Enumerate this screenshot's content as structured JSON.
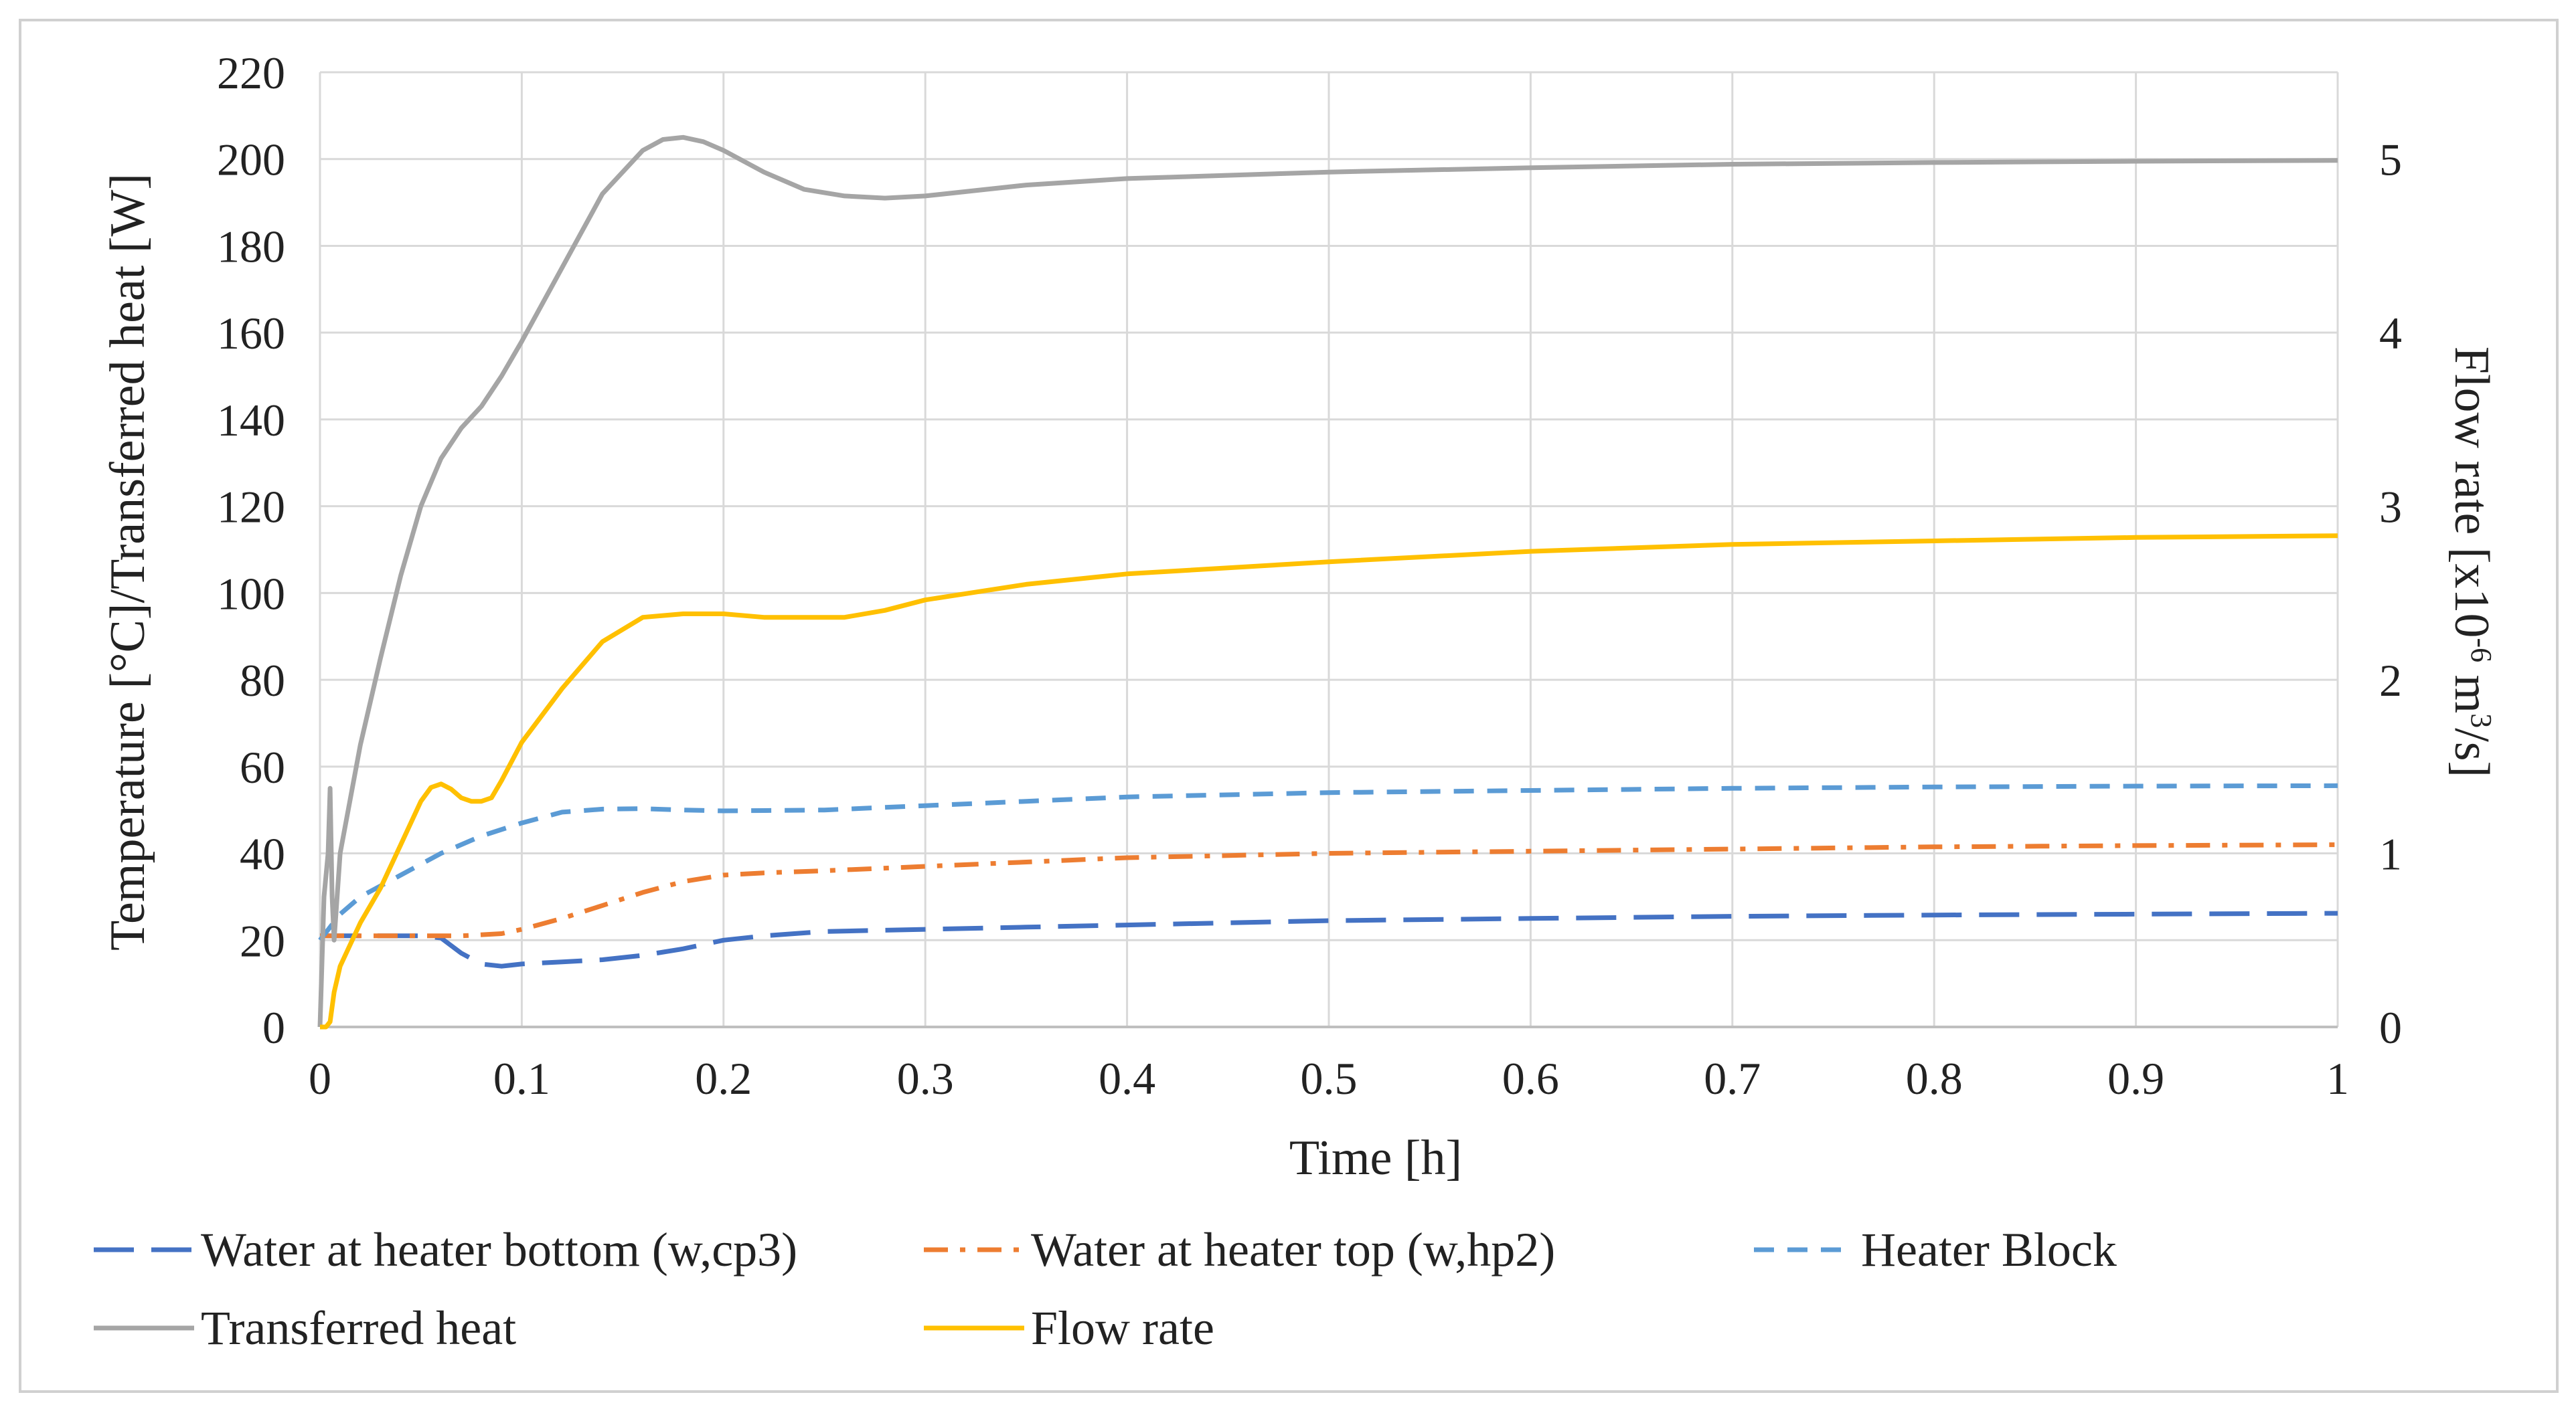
{
  "chart_data": {
    "type": "line",
    "xlabel": "Time [h]",
    "ylabel": "Temperature [°C]/Transferred heat [W]",
    "y2label": {
      "prefix": "Flow rate [x10",
      "exp1": "-6",
      "mid": " m",
      "exp2": "3",
      "suffix": "/s]"
    },
    "xlim": [
      0,
      1
    ],
    "ylim": [
      0,
      220
    ],
    "y2lim": [
      0,
      5.5
    ],
    "x_ticks": [
      0,
      0.1,
      0.2,
      0.3,
      0.4,
      0.5,
      0.6,
      0.7,
      0.8,
      0.9,
      1
    ],
    "x_tick_labels": [
      "0",
      "0.1",
      "0.2",
      "0.3",
      "0.4",
      "0.5",
      "0.6",
      "0.7",
      "0.8",
      "0.9",
      "1"
    ],
    "y_ticks": [
      0,
      20,
      40,
      60,
      80,
      100,
      120,
      140,
      160,
      180,
      200,
      220
    ],
    "y_tick_labels": [
      "0",
      "20",
      "40",
      "60",
      "80",
      "100",
      "120",
      "140",
      "160",
      "180",
      "200",
      "220"
    ],
    "y2_ticks": [
      0,
      1,
      2,
      3,
      4,
      5
    ],
    "y2_tick_labels": [
      "0",
      "1",
      "2",
      "3",
      "4",
      "5"
    ],
    "grid": true,
    "legend_position": "bottom",
    "series": [
      {
        "name": "Water at heater bottom (w,cp3)",
        "axis": "left",
        "color": "#4472c4",
        "dash": "long-dash",
        "x": [
          0,
          0.01,
          0.03,
          0.05,
          0.06,
          0.07,
          0.08,
          0.09,
          0.1,
          0.12,
          0.14,
          0.16,
          0.18,
          0.2,
          0.22,
          0.25,
          0.3,
          0.35,
          0.4,
          0.5,
          0.6,
          0.7,
          0.8,
          0.9,
          1.0
        ],
        "values": [
          21,
          21,
          21,
          21,
          20.5,
          17,
          14.5,
          14,
          14.5,
          15,
          15.5,
          16.5,
          18,
          20,
          21,
          22,
          22.5,
          23,
          23.5,
          24.5,
          25,
          25.5,
          25.8,
          26,
          26.2
        ]
      },
      {
        "name": "Water at heater top (w,hp2)",
        "axis": "left",
        "color": "#ed7d31",
        "dash": "dash-dot",
        "x": [
          0,
          0.02,
          0.05,
          0.07,
          0.09,
          0.1,
          0.12,
          0.14,
          0.16,
          0.18,
          0.2,
          0.22,
          0.25,
          0.3,
          0.35,
          0.4,
          0.5,
          0.6,
          0.7,
          0.8,
          0.9,
          1.0
        ],
        "values": [
          21,
          21,
          21,
          21,
          21.5,
          22.5,
          25,
          28,
          31,
          33.5,
          35,
          35.5,
          36,
          37,
          38,
          39,
          40,
          40.5,
          41,
          41.5,
          41.8,
          42
        ]
      },
      {
        "name": "Heater Block",
        "axis": "left",
        "color": "#5b9bd5",
        "dash": "short-dash",
        "x": [
          0,
          0.01,
          0.02,
          0.04,
          0.06,
          0.08,
          0.1,
          0.12,
          0.14,
          0.16,
          0.18,
          0.2,
          0.25,
          0.3,
          0.35,
          0.4,
          0.5,
          0.6,
          0.7,
          0.8,
          0.9,
          1.0
        ],
        "values": [
          20,
          26,
          30,
          35,
          40,
          44,
          47,
          49.5,
          50.2,
          50.3,
          50,
          49.8,
          50,
          51,
          52,
          53,
          54,
          54.5,
          55,
          55.3,
          55.5,
          55.6
        ]
      },
      {
        "name": "Transferred heat",
        "axis": "left",
        "color": "#a5a5a5",
        "dash": "solid",
        "x": [
          0,
          0.002,
          0.004,
          0.005,
          0.006,
          0.007,
          0.01,
          0.02,
          0.03,
          0.04,
          0.05,
          0.06,
          0.07,
          0.08,
          0.09,
          0.1,
          0.12,
          0.14,
          0.16,
          0.17,
          0.18,
          0.19,
          0.2,
          0.22,
          0.24,
          0.26,
          0.28,
          0.3,
          0.35,
          0.4,
          0.5,
          0.6,
          0.7,
          0.8,
          0.9,
          1.0
        ],
        "values": [
          0,
          30,
          40,
          55,
          30,
          20,
          40,
          65,
          85,
          104,
          120,
          131,
          138,
          143,
          150,
          158,
          175,
          192,
          202,
          204.5,
          205,
          204,
          202,
          197,
          193,
          191.5,
          191,
          191.5,
          194,
          195.5,
          197,
          198,
          198.8,
          199.2,
          199.5,
          199.7
        ]
      },
      {
        "name": "Flow rate",
        "axis": "right",
        "color": "#ffc000",
        "dash": "solid",
        "x": [
          0,
          0.003,
          0.005,
          0.007,
          0.01,
          0.02,
          0.03,
          0.04,
          0.05,
          0.055,
          0.06,
          0.065,
          0.07,
          0.075,
          0.08,
          0.085,
          0.09,
          0.1,
          0.12,
          0.14,
          0.16,
          0.18,
          0.2,
          0.22,
          0.25,
          0.26,
          0.28,
          0.3,
          0.35,
          0.4,
          0.5,
          0.6,
          0.7,
          0.8,
          0.9,
          1.0
        ],
        "values": [
          0,
          0,
          0.03,
          0.2,
          0.35,
          0.6,
          0.8,
          1.05,
          1.3,
          1.38,
          1.4,
          1.37,
          1.32,
          1.3,
          1.3,
          1.32,
          1.42,
          1.64,
          1.95,
          2.22,
          2.36,
          2.38,
          2.38,
          2.36,
          2.36,
          2.36,
          2.4,
          2.46,
          2.55,
          2.61,
          2.68,
          2.74,
          2.78,
          2.8,
          2.82,
          2.83
        ]
      }
    ]
  }
}
